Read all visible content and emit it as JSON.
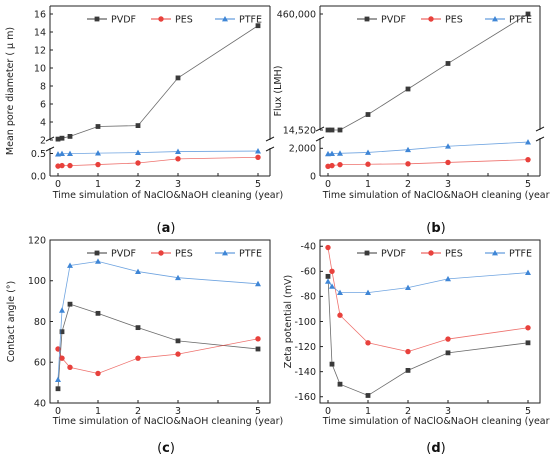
{
  "colors": {
    "PVDF": "#3a3a3a",
    "PES": "#e8413c",
    "PTFE": "#3f86d6"
  },
  "chart_data": [
    {
      "panel": "(a)",
      "panel_letter": "a",
      "type": "line",
      "ylabel": "Mean pore diameter ( μ m)",
      "xlabel": "Time simulation of NaClO&NaOH cleaning (year)",
      "legend_position": "top",
      "broken_axis": true,
      "x": [
        0,
        0.1,
        0.3,
        1,
        2,
        3,
        5
      ],
      "xticks": [
        "0",
        "1",
        "2",
        "3",
        "4",
        "5"
      ],
      "upper": {
        "ylim": [
          2,
          16
        ],
        "yticks": [
          "2",
          "4",
          "6",
          "8",
          "10",
          "12",
          "14",
          "16"
        ]
      },
      "lower": {
        "ylim": [
          0,
          0.5
        ],
        "yticks": [
          "0.0",
          "0.5"
        ]
      },
      "series": [
        {
          "name": "PVDF",
          "values": [
            2.1,
            2.2,
            2.4,
            3.5,
            3.6,
            8.9,
            14.7
          ]
        },
        {
          "name": "PES",
          "values": [
            0.19,
            0.2,
            0.2,
            0.22,
            0.25,
            0.33,
            0.36
          ]
        },
        {
          "name": "PTFE",
          "values": [
            0.42,
            0.43,
            0.43,
            0.44,
            0.45,
            0.47,
            0.48
          ]
        }
      ]
    },
    {
      "panel": "(b)",
      "panel_letter": "b",
      "type": "line",
      "ylabel": "Flux (LMH)",
      "xlabel": "Time simulation of NaClO&NaOH cleaning (year)",
      "legend_position": "top",
      "broken_axis": true,
      "x": [
        0,
        0.1,
        0.3,
        1,
        2,
        3,
        5
      ],
      "xticks": [
        "0",
        "1",
        "2",
        "3",
        "4",
        "5"
      ],
      "upper": {
        "ylim": [
          14520,
          460000
        ],
        "yticks": [
          "14,520",
          "460,000"
        ]
      },
      "lower": {
        "ylim": [
          0,
          2600
        ],
        "yticks": [
          "0",
          "2,000"
        ]
      },
      "series": [
        {
          "name": "PVDF",
          "values": [
            14520,
            14520,
            14520,
            74000,
            172000,
            270000,
            460000
          ]
        },
        {
          "name": "PES",
          "values": [
            700,
            750,
            820,
            850,
            880,
            980,
            1180
          ]
        },
        {
          "name": "PTFE",
          "values": [
            1600,
            1620,
            1640,
            1700,
            1900,
            2150,
            2450
          ]
        }
      ]
    },
    {
      "panel": "(c)",
      "panel_letter": "c",
      "type": "line",
      "ylabel": "Contact angle (°)",
      "xlabel": "Time simulation of NaClO&NaOH cleaning (year)",
      "legend_position": "top",
      "broken_axis": false,
      "x": [
        0,
        0.1,
        0.3,
        1,
        2,
        3,
        5
      ],
      "xticks": [
        "0",
        "1",
        "2",
        "3",
        "4",
        "5"
      ],
      "ylim": [
        40,
        120
      ],
      "yticks": [
        "40",
        "60",
        "80",
        "100",
        "120"
      ],
      "series": [
        {
          "name": "PVDF",
          "values": [
            47,
            75,
            88.5,
            84,
            77,
            70.5,
            66.5
          ]
        },
        {
          "name": "PES",
          "values": [
            66.5,
            62,
            57.5,
            54.5,
            62,
            64,
            71.5
          ]
        },
        {
          "name": "PTFE",
          "values": [
            51.5,
            85.5,
            107.5,
            109.5,
            104.5,
            101.5,
            98.5
          ]
        }
      ]
    },
    {
      "panel": "(d)",
      "panel_letter": "d",
      "type": "line",
      "ylabel": "Zeta potential (mV)",
      "xlabel": "Time simulation of NaClO&NaOH cleaning (year)",
      "legend_position": "top",
      "broken_axis": false,
      "x": [
        0,
        0.1,
        0.3,
        1,
        2,
        3,
        5
      ],
      "xticks": [
        "0",
        "1",
        "2",
        "3",
        "4",
        "5"
      ],
      "ylim": [
        -165,
        -35
      ],
      "yticks": [
        "-40",
        "-60",
        "-80",
        "-100",
        "-120",
        "-140",
        "-160"
      ],
      "series": [
        {
          "name": "PVDF",
          "values": [
            -64,
            -134,
            -150,
            -159,
            -139,
            -125,
            -117
          ]
        },
        {
          "name": "PES",
          "values": [
            -41,
            -60,
            -95,
            -117,
            -124,
            -114,
            -105
          ]
        },
        {
          "name": "PTFE",
          "values": [
            -68,
            -72,
            -77,
            -77,
            -73,
            -66,
            -61
          ]
        }
      ]
    }
  ]
}
